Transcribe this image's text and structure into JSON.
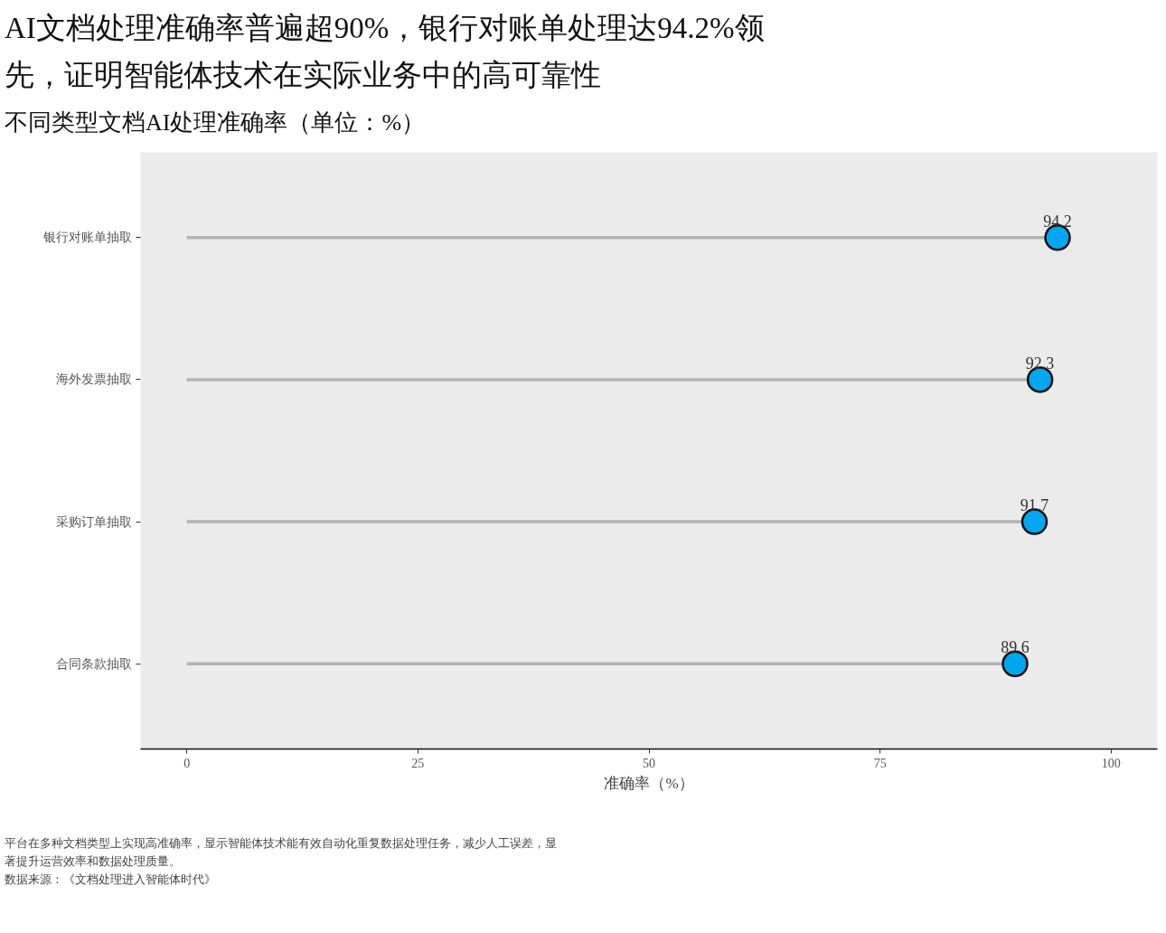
{
  "chart_data": {
    "type": "lollipop",
    "orientation": "horizontal",
    "title": "AI文档处理准确率普遍超90%，银行对账单处理达94.2%领先，证明智能体技术在实际业务中的高可靠性",
    "subtitle": "不同类型文档AI处理准确率（单位：%）",
    "xlabel": "准确率（%）",
    "categories": [
      "银行对账单抽取",
      "海外发票抽取",
      "采购订单抽取",
      "合同条款抽取"
    ],
    "series": [
      {
        "color": "#00a6f0",
        "values": [
          94.2,
          92.3,
          91.7,
          89.6
        ]
      }
    ],
    "xlim": [
      -5,
      105
    ],
    "xticks": [
      0,
      25,
      50,
      75,
      100
    ],
    "data_labels": true,
    "grid": false,
    "marker": "circle",
    "annotations": [
      "平台在多种文档类型上实现高准确率，显示智能体技术能有效自动化重复数据处理任务，减少人工误差，显著提升运营效率和数据处理质量。",
      "数据来源：《文档处理进入智能体时代》"
    ]
  }
}
